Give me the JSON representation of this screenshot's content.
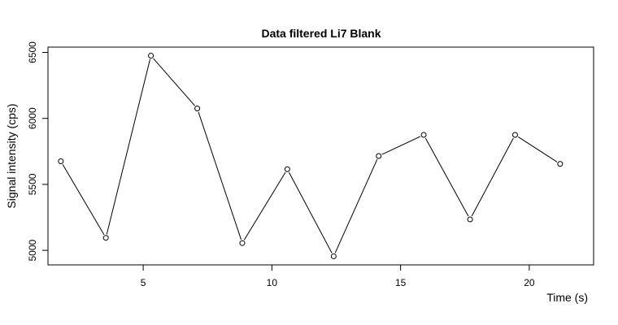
{
  "chart_data": {
    "type": "line",
    "title": "Data filtered Li7 Blank",
    "xlabel": "Time (s)",
    "ylabel": "Signal intensity (cps)",
    "xlim": [
      1.3,
      22.5
    ],
    "ylim": [
      4890,
      6540
    ],
    "xticks": [
      5,
      10,
      15,
      20
    ],
    "yticks": [
      5000,
      5500,
      6000,
      6500
    ],
    "grid": false,
    "legend": "none",
    "line_color": "#000000",
    "marker": "open-circle",
    "series": [
      {
        "x": [
          1.8,
          3.55,
          5.3,
          7.1,
          8.85,
          10.6,
          12.4,
          14.15,
          15.9,
          17.7,
          19.45,
          21.2
        ],
        "y": [
          5675,
          5095,
          6475,
          6075,
          5055,
          5615,
          4955,
          5715,
          5875,
          5235,
          5875,
          5655
        ]
      }
    ]
  }
}
